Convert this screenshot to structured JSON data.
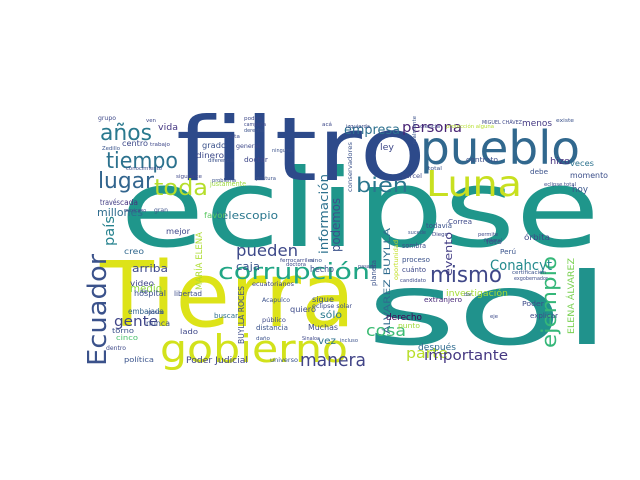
{
  "word_cloud": {
    "words": [
      {
        "text": "eclipse",
        "color": "#1f968b"
      },
      {
        "text": "sol",
        "color": "#20928c"
      },
      {
        "text": "Tierra",
        "color": "#dde318"
      },
      {
        "text": "filtro",
        "color": "#2d4a8a"
      },
      {
        "text": "pueblo",
        "color": "#31688e"
      },
      {
        "text": "Luna",
        "color": "#c8e020"
      },
      {
        "text": "gobierno",
        "color": "#d2e21b"
      },
      {
        "text": "Ecuador",
        "color": "#3b528b"
      },
      {
        "text": "corrupción",
        "color": "#21a685"
      },
      {
        "text": "tiempo",
        "color": "#2c728e"
      },
      {
        "text": "lugar",
        "color": "#32658e"
      },
      {
        "text": "años",
        "color": "#29798e"
      },
      {
        "text": "toda",
        "color": "#b5de2b"
      },
      {
        "text": "bien",
        "color": "#2a768e"
      },
      {
        "text": "mismo",
        "color": "#3f4788"
      },
      {
        "text": "ejemplo",
        "color": "#35b779"
      },
      {
        "text": "manera",
        "color": "#414487"
      },
      {
        "text": "cosa",
        "color": "#3dbc74"
      },
      {
        "text": "parte",
        "color": "#b8de29"
      },
      {
        "text": "importante",
        "color": "#453781"
      },
      {
        "text": "gente",
        "color": "#404688"
      },
      {
        "text": "pueden",
        "color": "#3e4989"
      },
      {
        "text": "persona",
        "color": "#482475"
      },
      {
        "text": "empresa",
        "color": "#2d708e"
      },
      {
        "text": "información",
        "color": "#2d718e"
      },
      {
        "text": "podemos",
        "color": "#3b528b"
      },
      {
        "text": "Conahcyt",
        "color": "#238a8d"
      },
      {
        "text": "país",
        "color": "#26828e"
      },
      {
        "text": "millones",
        "color": "#2f6c8e"
      },
      {
        "text": "caja",
        "color": "#3a548c"
      },
      {
        "text": "telescopio",
        "color": "#2a778e"
      },
      {
        "text": "arriba",
        "color": "#3e4a89"
      },
      {
        "text": "medio",
        "color": "#90d743"
      },
      {
        "text": "evento",
        "color": "#433e85"
      },
      {
        "text": "hecho",
        "color": "#3b528b"
      },
      {
        "text": "vez",
        "color": "#2c728e"
      },
      {
        "text": "sólo",
        "color": "#2a788e"
      },
      {
        "text": "Poder Judicial",
        "color": "#404588"
      },
      {
        "text": "ÁLVAREZ BUYLLA",
        "color": "#2f6b8e"
      },
      {
        "text": "ELENA ÁLVAREZ",
        "color": "#7ad151"
      },
      {
        "text": "MARÍA ELENA",
        "color": "#addc30"
      },
      {
        "text": "BUYLLA ROCES",
        "color": "#3e4c8a"
      },
      {
        "text": "investigación",
        "color": "#a5db36"
      },
      {
        "text": "derecho",
        "color": "#440154"
      },
      {
        "text": "después",
        "color": "#2f6b8e"
      },
      {
        "text": "menos",
        "color": "#443983"
      },
      {
        "text": "momento",
        "color": "#3c4f8a"
      },
      {
        "text": "hoy",
        "color": "#39558c"
      },
      {
        "text": "hizo",
        "color": "#46327e"
      },
      {
        "text": "veces",
        "color": "#2c728e"
      },
      {
        "text": "ley",
        "color": "#3e4989"
      },
      {
        "text": "vida",
        "color": "#453781"
      },
      {
        "text": "grado",
        "color": "#3b528b"
      },
      {
        "text": "dinero",
        "color": "#3e4a89"
      },
      {
        "text": "doctor",
        "color": "#3f4889"
      },
      {
        "text": "centro",
        "color": "#3e4989"
      },
      {
        "text": "cada",
        "color": "#46337f"
      },
      {
        "text": "través",
        "color": "#433d84"
      },
      {
        "text": "creo",
        "color": "#31688e"
      },
      {
        "text": "video",
        "color": "#3f4788"
      },
      {
        "text": "hospital",
        "color": "#3b528b"
      },
      {
        "text": "embajada",
        "color": "#33638d"
      },
      {
        "text": "nunca",
        "color": "#3b528b"
      },
      {
        "text": "cinco",
        "color": "#4ac16d"
      },
      {
        "text": "política",
        "color": "#3a548c"
      },
      {
        "text": "mejor",
        "color": "#3f4889"
      },
      {
        "text": "favor",
        "color": "#5cc863"
      },
      {
        "text": "quiero",
        "color": "#3e4c8a"
      },
      {
        "text": "sigue",
        "color": "#3b528b"
      },
      {
        "text": "Muchas",
        "color": "#3e4a89"
      },
      {
        "text": "distancia",
        "color": "#3a538b"
      },
      {
        "text": "buscar",
        "color": "#2e6f8e"
      },
      {
        "text": "libertad",
        "color": "#3d4d8a"
      },
      {
        "text": "lado",
        "color": "#3f4889"
      },
      {
        "text": "torno",
        "color": "#3b528b"
      },
      {
        "text": "punto",
        "color": "#9fda3a"
      },
      {
        "text": "cuánto",
        "color": "#3e4989"
      },
      {
        "text": "proceso",
        "color": "#3b528b"
      },
      {
        "text": "Perú",
        "color": "#3a548c"
      },
      {
        "text": "foto",
        "color": "#3f4889"
      },
      {
        "text": "órbita",
        "color": "#3e4989"
      },
      {
        "text": "debe",
        "color": "#3b528b"
      },
      {
        "text": "contrato",
        "color": "#3c4f8a"
      },
      {
        "text": "explicar",
        "color": "#3e4c8a"
      },
      {
        "text": "extranjero",
        "color": "#482878"
      },
      {
        "text": "justamente",
        "color": "#9bd93c"
      },
      {
        "text": "planeta",
        "color": "#3b528b"
      },
      {
        "text": "sombra",
        "color": "#3d4e8a"
      },
      {
        "text": "Correa",
        "color": "#3e4989"
      },
      {
        "text": "todavía",
        "color": "#3b528b"
      },
      {
        "text": "Poder",
        "color": "#3e4c8a"
      },
      {
        "text": "ecuatorianos",
        "color": "#3f4889"
      },
      {
        "text": "universo",
        "color": "#3a548c"
      },
      {
        "text": "público",
        "color": "#3e4989"
      },
      {
        "text": "Acapulco",
        "color": "#3b528b"
      },
      {
        "text": "eclipse solar",
        "color": "#3e4c8a"
      },
      {
        "text": "conservadores",
        "color": "#3b528b"
      },
      {
        "text": "general",
        "color": "#3e4989"
      },
      {
        "text": "MIGUEL CHÁVEZ",
        "color": "#3f4889"
      },
      {
        "text": "certificación",
        "color": "#3b528b"
      },
      {
        "text": "dentro",
        "color": "#3e4989"
      },
      {
        "text": "Zedillo",
        "color": "#3a548c"
      },
      {
        "text": "trabajo",
        "color": "#3f4889"
      },
      {
        "text": "conocimiento",
        "color": "#3e4c8a"
      },
      {
        "text": "postura",
        "color": "#3b528b"
      },
      {
        "text": "doctora",
        "color": "#3e4989"
      },
      {
        "text": "daño",
        "color": "#3b528b"
      },
      {
        "text": "carcel",
        "color": "#3e4989"
      },
      {
        "text": "total",
        "color": "#3b528b"
      },
      {
        "text": "eclipse total",
        "color": "#3e4c8a"
      },
      {
        "text": "Diego",
        "color": "#3f4889"
      },
      {
        "text": "sucede",
        "color": "#3b528b"
      },
      {
        "text": "permite",
        "color": "#3e4989"
      },
      {
        "text": "federal",
        "color": "#3b528b"
      },
      {
        "text": "candidato",
        "color": "#3e4c8a"
      },
      {
        "text": "pasado",
        "color": "#3f4889"
      },
      {
        "text": "incluso",
        "color": "#3b528b"
      },
      {
        "text": "acá",
        "color": "#3e4989"
      },
      {
        "text": "dio",
        "color": "#3b528b"
      },
      {
        "text": "ven",
        "color": "#3e4989"
      },
      {
        "text": "dar",
        "color": "#3b528b"
      },
      {
        "text": "eje",
        "color": "#3e4c8a"
      },
      {
        "text": "siguiente",
        "color": "#3f4889"
      },
      {
        "text": "problema",
        "color": "#3b528b"
      },
      {
        "text": "campaña",
        "color": "#3e4989"
      },
      {
        "text": "ninguna",
        "color": "#3b528b"
      },
      {
        "text": "izquierda",
        "color": "#3e4c8a"
      },
      {
        "text": "ciencia",
        "color": "#3f4889"
      },
      {
        "text": "protección alguna",
        "color": "#b5de2b"
      },
      {
        "text": "realmente",
        "color": "#3b528b"
      },
      {
        "text": "grupo",
        "color": "#3e4989"
      },
      {
        "text": "existe",
        "color": "#3b528b"
      },
      {
        "text": "dónde",
        "color": "#3e4c8a"
      },
      {
        "text": "Sinaloa",
        "color": "#3f4889"
      },
      {
        "text": "diferencia",
        "color": "#3b528b"
      },
      {
        "text": "podría",
        "color": "#3e4989"
      },
      {
        "text": "derecha",
        "color": "#3b528b"
      },
      {
        "text": "vista",
        "color": "#3e4c8a"
      },
      {
        "text": "mexicano",
        "color": "#3f4889"
      },
      {
        "text": "gran",
        "color": "#3b528b"
      },
      {
        "text": "ferrocarriles",
        "color": "#3e4989"
      },
      {
        "text": "sino",
        "color": "#3b528b"
      },
      {
        "text": "oportunidad",
        "color": "#c2df23"
      },
      {
        "text": "exgobernador",
        "color": "#3e4c8a"
      }
    ]
  }
}
